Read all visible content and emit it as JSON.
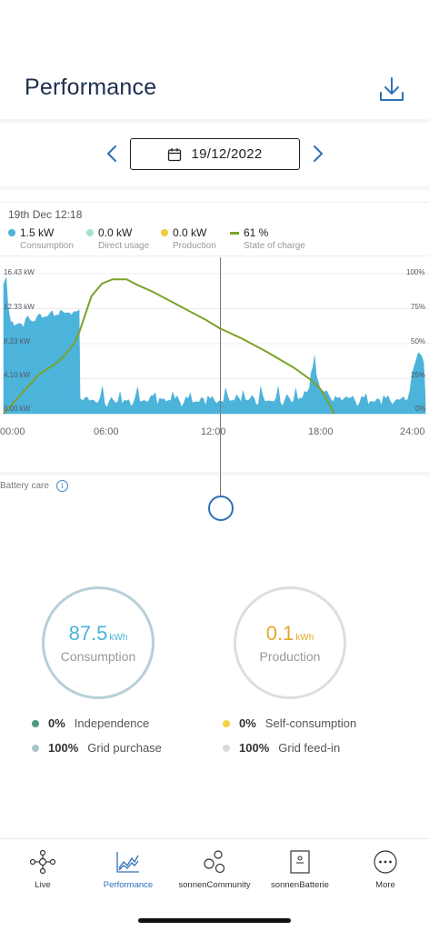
{
  "header": {
    "title": "Performance",
    "download_icon": "download-icon"
  },
  "date_nav": {
    "date": "19/12/2022",
    "prev_icon": "chevron-left-icon",
    "next_icon": "chevron-right-icon",
    "calendar_icon": "calendar-icon"
  },
  "info": {
    "timestamp": "19th Dec 12:18",
    "legend": [
      {
        "value": "1.5 kW",
        "label": "Consumption",
        "color": "#4cb3db"
      },
      {
        "value": "0.0 kW",
        "label": "Direct usage",
        "color": "#a6dfd5"
      },
      {
        "value": "0.0 kW",
        "label": "Production",
        "color": "#f2cd3c"
      },
      {
        "value": "61 %",
        "label": "State of charge",
        "color": "#7aa32b"
      }
    ]
  },
  "chart_data": {
    "type": "area",
    "x_ticks": [
      "00:00",
      "06:00",
      "12:00",
      "18:00",
      "24:00"
    ],
    "y_ticks_left": [
      "16.43 kW",
      "12.33 kW",
      "8.23 kW",
      "4.10 kW",
      "0.00 kW"
    ],
    "y_ticks_right": [
      "100%",
      "75%",
      "50%",
      "25%",
      "0%"
    ],
    "ylim_left": [
      0,
      16.43
    ],
    "ylim_right": [
      0,
      100
    ],
    "xlim_hours": [
      0,
      24
    ],
    "cursor_hour": 12.3,
    "series": [
      {
        "name": "Consumption",
        "color": "#4cb3db",
        "axis": "left",
        "x": [
          0,
          0.15,
          0.25,
          0.4,
          0.6,
          0.9,
          1.5,
          1.8,
          2.2,
          2.5,
          3.0,
          3.5,
          4.0,
          4.3,
          4.35,
          4.5,
          5.0,
          6.0,
          7.0,
          8.0,
          9.0,
          10.0,
          11.0,
          12.0,
          13.0,
          14.0,
          15.0,
          16.0,
          17.0,
          17.4,
          17.6,
          17.7,
          17.8,
          18.0,
          18.5,
          19.0,
          19.5,
          20.0,
          21.0,
          22.0,
          22.5,
          23.0,
          23.5,
          23.7,
          23.9,
          24.0
        ],
        "values": [
          15.2,
          16.0,
          12.5,
          10.8,
          10.3,
          10.6,
          11.0,
          10.9,
          11.2,
          11.4,
          11.6,
          11.8,
          12.0,
          12.2,
          1.8,
          1.5,
          1.6,
          1.4,
          1.5,
          1.6,
          1.7,
          1.5,
          1.4,
          1.5,
          1.6,
          1.7,
          1.5,
          1.6,
          1.8,
          3.0,
          5.5,
          6.8,
          4.5,
          3.0,
          2.2,
          1.8,
          2.0,
          1.5,
          1.4,
          1.5,
          1.6,
          1.7,
          6.5,
          7.0,
          6.0,
          1.8
        ]
      },
      {
        "name": "State of charge",
        "color": "#7aa32b",
        "axis": "right",
        "x": [
          0,
          0.5,
          1.0,
          1.5,
          2.0,
          2.5,
          3.0,
          3.5,
          4.0,
          4.3,
          5.0,
          5.6,
          6.2,
          7.0,
          7.6,
          8.5,
          10.0,
          11.5,
          12.3,
          13.5,
          15.0,
          16.5,
          17.5,
          18.0,
          18.4,
          18.8
        ],
        "values": [
          0,
          7,
          14,
          21,
          28,
          32,
          36,
          42,
          50,
          58,
          84,
          93,
          96,
          96,
          92,
          87,
          77,
          67,
          61,
          54,
          44,
          33,
          24,
          18,
          10,
          0
        ]
      }
    ]
  },
  "battery_care": {
    "label": "Battery care",
    "icon": "info-icon"
  },
  "stats": {
    "consumption": {
      "value": "87.5",
      "unit": "kWh",
      "label": "Consumption",
      "color": "#4cb3db",
      "ring": "#b7cfd9"
    },
    "production": {
      "value": "0.1",
      "unit": "kWh",
      "label": "Production",
      "color": "#e5a92a",
      "ring": "#dedede"
    },
    "rows": [
      {
        "pct": "0%",
        "label": "Independence",
        "color": "#4a9a85"
      },
      {
        "pct": "100%",
        "label": "Grid purchase",
        "color": "#a6c6cf"
      },
      {
        "pct": "0%",
        "label": "Self-consumption",
        "color": "#f2d33c"
      },
      {
        "pct": "100%",
        "label": "Grid feed-in",
        "color": "#dadada"
      }
    ]
  },
  "tabbar": {
    "tabs": [
      {
        "label": "Live",
        "icon": "live-network-icon"
      },
      {
        "label": "Performance",
        "icon": "performance-chart-icon"
      },
      {
        "label": "sonnenCommunity",
        "icon": "community-icon"
      },
      {
        "label": "sonnenBatterie",
        "icon": "battery-device-icon"
      },
      {
        "label": "More",
        "icon": "more-dots-icon"
      }
    ],
    "active_color": "#2f6fb8"
  }
}
